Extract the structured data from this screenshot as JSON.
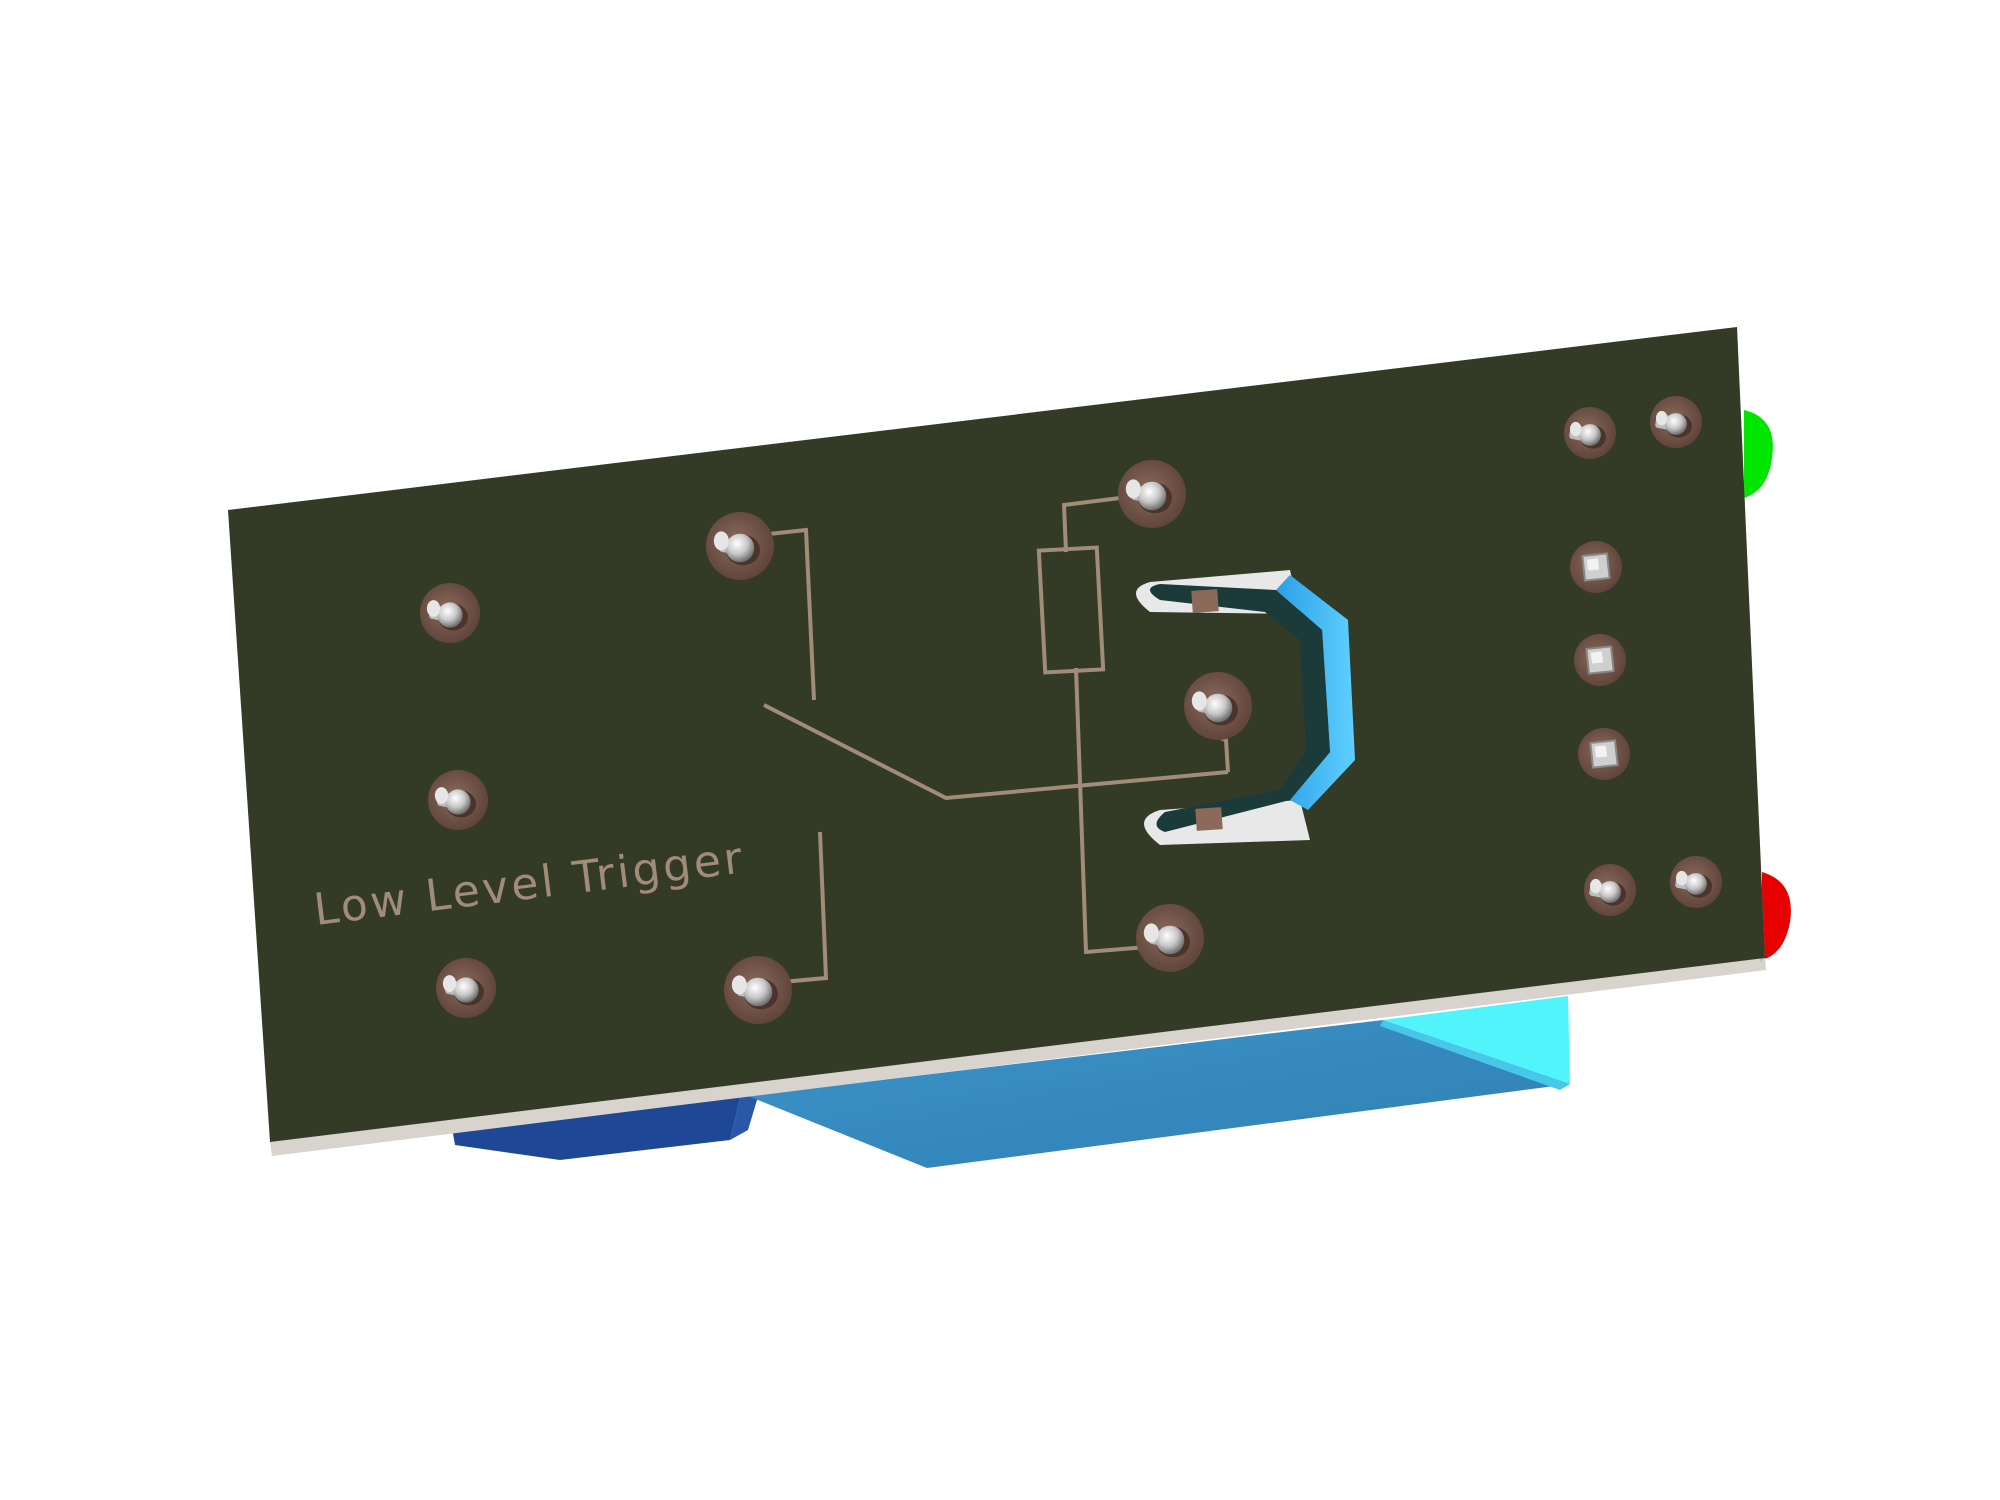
{
  "board": {
    "silkscreen_label": "Low Level Trigger",
    "pcb_color": "#333b27",
    "silk_color": "#a08c78",
    "edge_color": "#d8d3cc"
  },
  "components": {
    "relay_color": "#3a8ec2",
    "relay_highlight": "#52f4fb",
    "terminal_block_color": "#1e4796",
    "diode_body_color": "#1b3a3a",
    "led_top_color": "#00e600",
    "led_bottom_color": "#e60000",
    "pad_color": "#6e4e42",
    "pin_color": "#d6d6d6"
  }
}
